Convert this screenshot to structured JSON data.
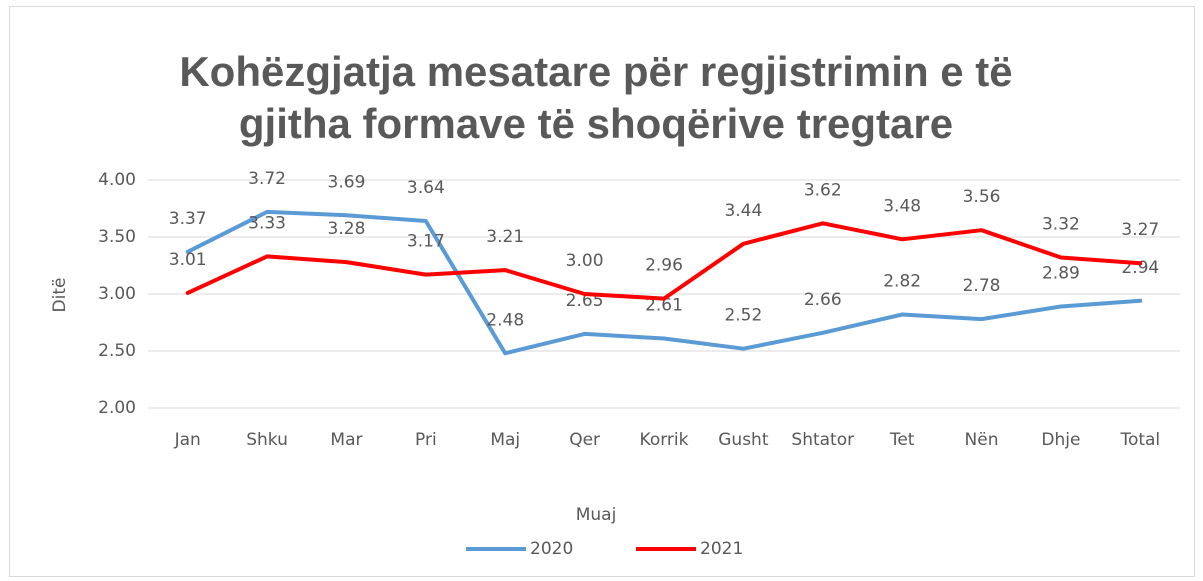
{
  "chart_data": {
    "type": "line",
    "title": [
      "Kohëzgjatja mesatare për regjistrimin e të",
      "gjitha formave të shoqërive tregtare"
    ],
    "x_label": "Muaj",
    "y_label": "Ditë",
    "categories": [
      "Jan",
      "Shku",
      "Mar",
      "Pri",
      "Maj",
      "Qer",
      "Korrik",
      "Gusht",
      "Shtator",
      "Tet",
      "Nën",
      "Dhje",
      "Total"
    ],
    "series": [
      {
        "name": "2020",
        "color": "#5b9bd5",
        "values": [
          3.37,
          3.72,
          3.69,
          3.64,
          2.48,
          2.65,
          2.61,
          2.52,
          2.66,
          2.82,
          2.78,
          2.89,
          2.94
        ]
      },
      {
        "name": "2021",
        "color": "#ff0000",
        "values": [
          3.01,
          3.33,
          3.28,
          3.17,
          3.21,
          3,
          2.96,
          3.44,
          3.62,
          3.48,
          3.56,
          3.32,
          3.27
        ],
        "value_labels": [
          "3.01",
          "3.33",
          "3.28",
          "3.17",
          "3.21",
          "3.00",
          "2.96",
          "3.44",
          "3.62",
          "3.48",
          "3.56",
          "3.32",
          "3.27"
        ]
      }
    ],
    "ylim": [
      2,
      4
    ],
    "yticks": [
      {
        "value": 2,
        "label": "2.00"
      },
      {
        "value": 2.5,
        "label": "2.50"
      },
      {
        "value": 3,
        "label": "3.00"
      },
      {
        "value": 3.5,
        "label": "3.50"
      },
      {
        "value": 4,
        "label": "4.00"
      }
    ],
    "grid": true,
    "legend": "bottom"
  }
}
